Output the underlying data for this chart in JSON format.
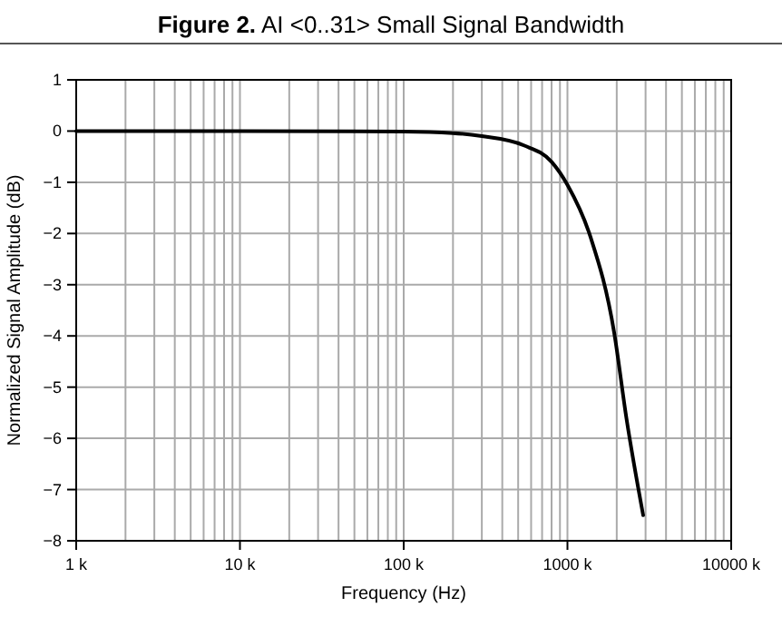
{
  "chart_data": {
    "type": "line",
    "title": "Figure 2. AI <0..31> Small Signal Bandwidth",
    "xlabel": "Frequency (Hz)",
    "ylabel": "Normalized Signal Amplitude (dB)",
    "log": "x",
    "grid": true,
    "marker": "none",
    "line_style": "solid",
    "xlim": [
      1000,
      10000000
    ],
    "ylim": [
      -8,
      1
    ],
    "xticks": [
      {
        "value": 1000,
        "label": "1 k"
      },
      {
        "value": 2000,
        "label": null
      },
      {
        "value": 3000,
        "label": null
      },
      {
        "value": 4000,
        "label": null
      },
      {
        "value": 5000,
        "label": null
      },
      {
        "value": 6000,
        "label": null
      },
      {
        "value": 7000,
        "label": null
      },
      {
        "value": 8000,
        "label": null
      },
      {
        "value": 9000,
        "label": null
      },
      {
        "value": 10000,
        "label": "10 k"
      },
      {
        "value": 20000,
        "label": null
      },
      {
        "value": 30000,
        "label": null
      },
      {
        "value": 40000,
        "label": null
      },
      {
        "value": 50000,
        "label": null
      },
      {
        "value": 60000,
        "label": null
      },
      {
        "value": 70000,
        "label": null
      },
      {
        "value": 80000,
        "label": null
      },
      {
        "value": 90000,
        "label": null
      },
      {
        "value": 100000,
        "label": "100 k"
      },
      {
        "value": 200000,
        "label": null
      },
      {
        "value": 300000,
        "label": null
      },
      {
        "value": 400000,
        "label": null
      },
      {
        "value": 500000,
        "label": null
      },
      {
        "value": 600000,
        "label": null
      },
      {
        "value": 700000,
        "label": null
      },
      {
        "value": 800000,
        "label": null
      },
      {
        "value": 900000,
        "label": null
      },
      {
        "value": 1000000,
        "label": "1000 k"
      },
      {
        "value": 2000000,
        "label": null
      },
      {
        "value": 3000000,
        "label": null
      },
      {
        "value": 4000000,
        "label": null
      },
      {
        "value": 5000000,
        "label": null
      },
      {
        "value": 6000000,
        "label": null
      },
      {
        "value": 7000000,
        "label": null
      },
      {
        "value": 8000000,
        "label": null
      },
      {
        "value": 9000000,
        "label": null
      },
      {
        "value": 10000000,
        "label": "10000 k"
      }
    ],
    "yticks": [
      {
        "value": -8,
        "label": "−8"
      },
      {
        "value": -7,
        "label": "−7"
      },
      {
        "value": -6,
        "label": "−6"
      },
      {
        "value": -5,
        "label": "−5"
      },
      {
        "value": -4,
        "label": "−4"
      },
      {
        "value": -3,
        "label": "−3"
      },
      {
        "value": -2,
        "label": "−2"
      },
      {
        "value": -1,
        "label": "−1"
      },
      0,
      1
    ],
    "series": [
      {
        "color": "#000000",
        "x": [
          1000,
          10000,
          100000,
          200000,
          300000,
          542000,
          800000,
          1000000,
          1380000,
          1930000,
          2290000,
          2900000
        ],
        "values": [
          0,
          0,
          -0.01,
          -0.04,
          -0.1,
          -0.28,
          -0.6,
          -1.05,
          -2.06,
          -3.94,
          -5.6,
          -7.5
        ]
      }
    ]
  }
}
